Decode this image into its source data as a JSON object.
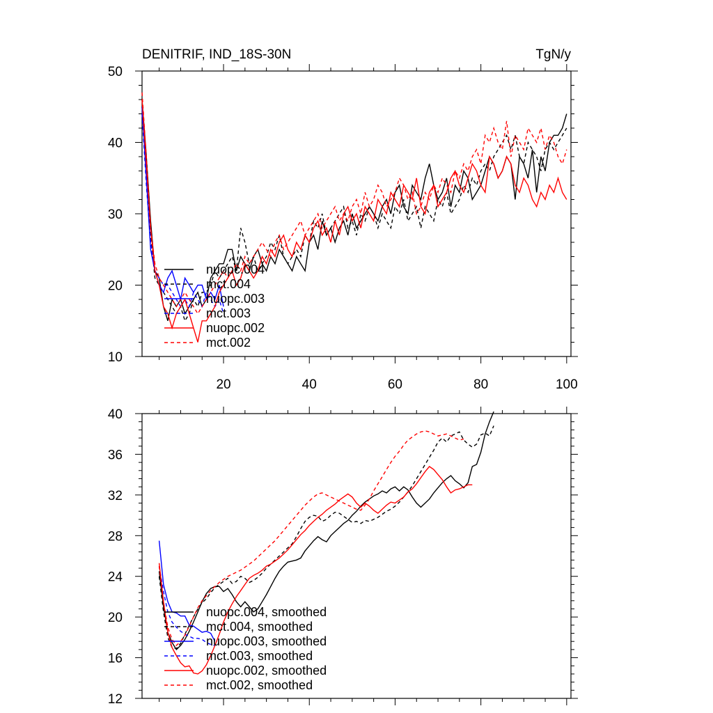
{
  "header": {
    "title_left": "DENITRIF, IND_18S-30N",
    "title_right": "TgN/y"
  },
  "colors": {
    "nuopc_004": "#000000",
    "mct_004": "#000000",
    "nuopc_003": "#0000ff",
    "mct_003": "#0000ff",
    "nuopc_002": "#ff0000",
    "mct_002": "#ff0000"
  },
  "chart_data": [
    {
      "type": "line",
      "title": "DENITRIF, IND_18S-30N",
      "units": "TgN/y",
      "xlim": [
        1,
        101
      ],
      "ylim": [
        10,
        50
      ],
      "xticks": [
        20,
        40,
        60,
        80,
        100
      ],
      "yticks": [
        10,
        20,
        30,
        40,
        50
      ],
      "xtick_labels": [
        "20",
        "40",
        "60",
        "80",
        "100"
      ],
      "ytick_labels": [
        "10",
        "20",
        "30",
        "40",
        "50"
      ],
      "legend": [
        "nuopc.004",
        "mct.004",
        "nuopc.003",
        "mct.003",
        "nuopc.002",
        "mct.002"
      ],
      "series": [
        {
          "name": "nuopc.004",
          "color": "#000000",
          "dash": "solid",
          "x_start": 1,
          "values": [
            46,
            38,
            29,
            22,
            21,
            17,
            15,
            18,
            17,
            18,
            16,
            17,
            18,
            19,
            17,
            18,
            21,
            22,
            23,
            23,
            25,
            25,
            22,
            24,
            23,
            22,
            24,
            25,
            23,
            22,
            24,
            23,
            25,
            24,
            23,
            22,
            24,
            23,
            22,
            26,
            27,
            25,
            29,
            27,
            28,
            26,
            28,
            29,
            27,
            30,
            28,
            29,
            30,
            31,
            30,
            29,
            31,
            32,
            30,
            33,
            34,
            31,
            30,
            34,
            33,
            32,
            35,
            37,
            34,
            32,
            33,
            35,
            31,
            34,
            33,
            36,
            35,
            32,
            33,
            34,
            36,
            38,
            37,
            35,
            36,
            38,
            37,
            32,
            38,
            37,
            35,
            39,
            33,
            38,
            36,
            40,
            41,
            41,
            42,
            44
          ]
        },
        {
          "name": "mct.004",
          "color": "#000000",
          "dash": "dashed",
          "x_start": 1,
          "values": [
            45,
            36,
            27,
            21,
            20,
            19,
            18,
            17,
            16,
            17,
            15,
            16,
            18,
            17,
            19,
            19,
            20,
            22,
            21,
            22,
            23,
            24,
            22,
            28,
            26,
            23,
            24,
            22,
            23,
            24,
            26,
            25,
            27,
            24,
            23,
            24,
            25,
            24,
            27,
            26,
            29,
            28,
            30,
            27,
            28,
            29,
            30,
            31,
            28,
            29,
            27,
            30,
            29,
            31,
            30,
            28,
            30,
            29,
            28,
            31,
            30,
            32,
            29,
            30,
            31,
            28,
            31,
            30,
            29,
            32,
            31,
            33,
            30,
            31,
            32,
            34,
            33,
            35,
            34,
            36,
            37,
            36,
            38,
            39,
            40,
            41,
            39,
            41,
            38,
            37,
            40,
            39,
            38,
            36,
            39,
            40,
            39,
            40,
            41,
            42
          ]
        },
        {
          "name": "nuopc.003",
          "color": "#0000ff",
          "dash": "solid",
          "x_start": 1,
          "values": [
            45,
            35,
            25,
            22,
            20,
            19,
            21,
            22,
            20,
            18,
            21,
            20,
            19,
            20,
            20,
            18,
            19,
            18,
            20,
            17
          ]
        },
        {
          "name": "mct.003",
          "color": "#0000ff",
          "dash": "dashed",
          "x_start": 1,
          "values": [
            44,
            34,
            26,
            22,
            21,
            20,
            20,
            19,
            18,
            17,
            18,
            17,
            19,
            18,
            17,
            19,
            18,
            17,
            18,
            16
          ]
        },
        {
          "name": "nuopc.002",
          "color": "#ff0000",
          "dash": "solid",
          "x_start": 1,
          "values": [
            46,
            37,
            28,
            22,
            20,
            17,
            16,
            14,
            16,
            17,
            18,
            16,
            14,
            12,
            15,
            15,
            16,
            17,
            19,
            20,
            21,
            22,
            20,
            21,
            23,
            22,
            21,
            22,
            24,
            23,
            25,
            24,
            26,
            27,
            25,
            24,
            26,
            25,
            27,
            26,
            28,
            29,
            27,
            28,
            26,
            29,
            27,
            30,
            31,
            29,
            30,
            28,
            31,
            30,
            29,
            32,
            31,
            30,
            33,
            32,
            31,
            34,
            33,
            32,
            35,
            31,
            30,
            33,
            34,
            31,
            32,
            33,
            35,
            36,
            34,
            33,
            35,
            37,
            36,
            34,
            33,
            38,
            37,
            35,
            36,
            38,
            37,
            34,
            33,
            35,
            34,
            32,
            31,
            33,
            32,
            34,
            33,
            35,
            33,
            32
          ]
        },
        {
          "name": "mct.002",
          "color": "#ff0000",
          "dash": "dashed",
          "x_start": 1,
          "values": [
            47,
            38,
            28,
            23,
            21,
            20,
            19,
            18,
            17,
            18,
            19,
            18,
            17,
            16,
            17,
            18,
            19,
            20,
            21,
            22,
            21,
            22,
            23,
            22,
            24,
            23,
            24,
            25,
            26,
            25,
            24,
            26,
            27,
            25,
            26,
            27,
            28,
            29,
            27,
            28,
            29,
            30,
            28,
            29,
            30,
            31,
            29,
            30,
            29,
            31,
            32,
            30,
            33,
            31,
            32,
            34,
            33,
            31,
            32,
            33,
            35,
            34,
            32,
            33,
            30,
            31,
            33,
            32,
            34,
            33,
            35,
            34,
            33,
            36,
            35,
            37,
            36,
            38,
            39,
            37,
            41,
            40,
            42,
            40,
            39,
            43,
            38,
            41,
            40,
            39,
            42,
            41,
            40,
            42,
            39,
            41,
            40,
            38,
            37,
            39
          ]
        }
      ]
    },
    {
      "type": "line",
      "title": "",
      "xlim": [
        1,
        101
      ],
      "ylim": [
        12,
        40
      ],
      "xticks": [
        20,
        40,
        60,
        80,
        100
      ],
      "yticks": [
        12,
        16,
        20,
        24,
        28,
        32,
        36,
        40
      ],
      "ytick_labels": [
        "12",
        "16",
        "20",
        "24",
        "28",
        "32",
        "36",
        "40"
      ],
      "legend": [
        "nuopc.004, smoothed",
        "mct.004, smoothed",
        "nuopc.003, smoothed",
        "mct.003, smoothed",
        "nuopc.002, smoothed",
        "mct.002, smoothed"
      ],
      "series": [
        {
          "name": "nuopc.004, smoothed",
          "color": "#000000",
          "dash": "solid",
          "x_start": 5,
          "values": [
            24.5,
            21,
            18.5,
            17.5,
            16.8,
            17.2,
            17.8,
            18.6,
            19.5,
            20.5,
            21.5,
            22.3,
            22.8,
            23,
            23,
            22.5,
            22.8,
            22.2,
            21.5,
            21,
            21.5,
            21,
            20.5,
            20.8,
            21.5,
            22.2,
            23,
            23.8,
            24.5,
            25,
            25.4,
            25.5,
            25.6,
            25.8,
            26.5,
            27,
            27.5,
            27.9,
            27.6,
            27.4,
            28,
            28.4,
            28.8,
            29.2,
            29.5,
            30,
            30.4,
            30.9,
            31.3,
            31.6,
            31.9,
            32.1,
            32.4,
            32.2,
            32.6,
            32.8,
            32.4,
            32.8,
            32.5,
            31.8,
            31.2,
            30.8,
            31.2,
            31.6,
            32.2,
            32.7,
            33.2,
            33.6,
            33.9,
            33.4,
            33.1,
            32.7,
            33.2,
            34.8,
            35,
            36.2,
            38,
            39.2,
            40.2
          ]
        },
        {
          "name": "mct.004, smoothed",
          "color": "#000000",
          "dash": "dashed",
          "x_start": 5,
          "values": [
            24,
            20.5,
            18,
            17,
            16.9,
            17.4,
            18.3,
            19.2,
            20,
            20.8,
            21.4,
            21.8,
            22.4,
            22.9,
            23.2,
            23.5,
            23.8,
            23.3,
            23.5,
            24,
            23.8,
            23.4,
            23.6,
            23.9,
            24.3,
            24.8,
            25.2,
            25.6,
            26,
            26.4,
            26.8,
            27.2,
            27.9,
            28.7,
            29.4,
            29.8,
            30,
            29.9,
            29.4,
            29.6,
            30,
            30.3,
            30.2,
            29.9,
            29.6,
            29.3,
            29.4,
            29.2,
            29.5,
            29.4,
            29.6,
            29.8,
            30.1,
            30.4,
            30.6,
            30.9,
            31.3,
            31.8,
            32.3,
            32.9,
            33.6,
            34.3,
            35,
            35.7,
            36.4,
            37.2,
            37.6,
            37.2,
            37.8,
            38,
            38.2,
            37.4,
            37,
            36.7,
            37,
            37.9,
            38.1,
            37.8,
            38.8
          ]
        },
        {
          "name": "nuopc.003, smoothed",
          "color": "#0000ff",
          "dash": "solid",
          "x_start": 5,
          "values": [
            27.5,
            23.2,
            21.5,
            20.5,
            20.4,
            20.1,
            20.1,
            19.2,
            19.1,
            18.8,
            18.5,
            18.6,
            18.4,
            17.6
          ]
        },
        {
          "name": "mct.003, smoothed",
          "color": "#0000ff",
          "dash": "dashed",
          "x_start": 5,
          "values": [
            25,
            22.5,
            20.5,
            19.5,
            19,
            18.6,
            18.3,
            18.1,
            17.9,
            17.9,
            17.8,
            17.5,
            17.3,
            17.2
          ]
        },
        {
          "name": "nuopc.002, smoothed",
          "color": "#ff0000",
          "dash": "solid",
          "x_start": 5,
          "values": [
            25.3,
            21.5,
            18.5,
            17,
            16.2,
            15.5,
            15.1,
            15.2,
            14.5,
            14.4,
            14.7,
            15.3,
            16.2,
            17.2,
            18.3,
            19.5,
            20.5,
            21.3,
            22,
            22.6,
            23.2,
            23.8,
            24.1,
            24.3,
            24.6,
            25,
            25.2,
            25.5,
            25.8,
            26.2,
            26.6,
            27.1,
            27.6,
            28.1,
            28.5,
            29,
            29.4,
            29.8,
            30.1,
            30.5,
            30.8,
            31.1,
            31.5,
            31.8,
            32.1,
            31.8,
            31.2,
            30.8,
            31.2,
            30.9,
            30.5,
            30.2,
            30.6,
            31,
            31.3,
            31.2,
            31.5,
            31.8,
            32.3,
            32.6,
            33.1,
            33.7,
            34.3,
            34.8,
            34.5,
            34,
            33.5,
            32.8,
            32.2,
            32.5,
            32.6,
            32.8,
            33,
            33
          ]
        },
        {
          "name": "mct.002, smoothed",
          "color": "#ff0000",
          "dash": "dashed",
          "x_start": 5,
          "values": [
            25,
            21.5,
            19,
            17.8,
            17.2,
            17.6,
            18.2,
            19.1,
            20,
            20.9,
            21.6,
            22.1,
            22.6,
            23,
            23.4,
            23.7,
            24,
            24.2,
            24.4,
            24.6,
            24.9,
            25.2,
            25.5,
            25.9,
            26.3,
            26.7,
            27.1,
            27.5,
            28,
            28.5,
            29,
            29.5,
            30,
            30.5,
            31,
            31.4,
            31.8,
            32.1,
            32.2,
            32,
            31.8,
            31.6,
            31.4,
            31.2,
            31,
            30.8,
            30.6,
            30.5,
            31,
            31.6,
            32.4,
            33.1,
            33.8,
            34.5,
            35.2,
            35.8,
            36.3,
            36.9,
            37.4,
            37.7,
            38,
            38.2,
            38.3,
            38.2,
            38,
            37.8,
            37.9,
            38,
            37.8,
            37.6,
            37.4,
            37.5
          ]
        }
      ]
    }
  ]
}
